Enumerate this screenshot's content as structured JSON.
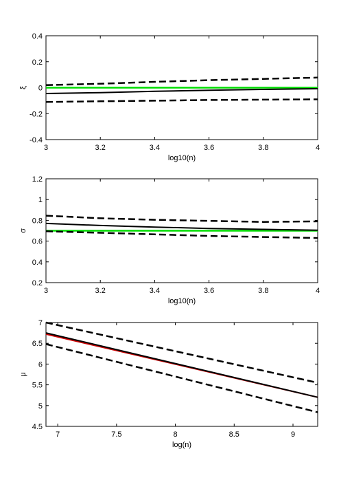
{
  "chart_data": [
    {
      "type": "line",
      "xlabel": "log10(n)",
      "ylabel": "ξ",
      "xlim": [
        3,
        4
      ],
      "ylim": [
        -0.4,
        0.4
      ],
      "xticks": [
        "3",
        "3.2",
        "3.4",
        "3.6",
        "3.8",
        "4"
      ],
      "yticks": [
        "-0.4",
        "-0.2",
        "0",
        "0.2",
        "0.4"
      ],
      "series": [
        {
          "style": "solid",
          "color": "#00dd00",
          "x": [
            3,
            4
          ],
          "y": [
            0.0,
            0.0
          ]
        },
        {
          "style": "solid",
          "color": "#000000",
          "x": [
            3,
            3.2,
            3.4,
            3.6,
            3.8,
            4
          ],
          "y": [
            -0.045,
            -0.038,
            -0.028,
            -0.02,
            -0.013,
            -0.008
          ]
        },
        {
          "style": "dashed",
          "color": "#000000",
          "x": [
            3,
            3.2,
            3.4,
            3.6,
            3.8,
            4
          ],
          "y": [
            0.02,
            0.03,
            0.045,
            0.058,
            0.068,
            0.078
          ]
        },
        {
          "style": "dashed",
          "color": "#000000",
          "x": [
            3,
            3.2,
            3.4,
            3.6,
            3.8,
            4
          ],
          "y": [
            -0.11,
            -0.105,
            -0.1,
            -0.095,
            -0.092,
            -0.09
          ]
        }
      ]
    },
    {
      "type": "line",
      "xlabel": "log10(n)",
      "ylabel": "σ",
      "xlim": [
        3,
        4
      ],
      "ylim": [
        0.2,
        1.2
      ],
      "xticks": [
        "3",
        "3.2",
        "3.4",
        "3.6",
        "3.8",
        "4"
      ],
      "yticks": [
        "0.2",
        "0.4",
        "0.6",
        "0.8",
        "1",
        "1.2"
      ],
      "series": [
        {
          "style": "solid",
          "color": "#00dd00",
          "x": [
            3,
            4
          ],
          "y": [
            0.7,
            0.7
          ]
        },
        {
          "style": "solid",
          "color": "#000000",
          "x": [
            3,
            3.2,
            3.4,
            3.6,
            3.8,
            4
          ],
          "y": [
            0.77,
            0.75,
            0.735,
            0.722,
            0.713,
            0.705
          ]
        },
        {
          "style": "dashed",
          "color": "#000000",
          "x": [
            3,
            3.2,
            3.4,
            3.6,
            3.8,
            4
          ],
          "y": [
            0.845,
            0.82,
            0.805,
            0.795,
            0.785,
            0.79
          ]
        },
        {
          "style": "dashed",
          "color": "#000000",
          "x": [
            3,
            3.2,
            3.4,
            3.6,
            3.8,
            4
          ],
          "y": [
            0.695,
            0.68,
            0.665,
            0.65,
            0.64,
            0.63
          ]
        }
      ]
    },
    {
      "type": "line",
      "xlabel": "log(n)",
      "ylabel": "μ",
      "xlim": [
        6.9,
        9.21
      ],
      "ylim": [
        4.5,
        7
      ],
      "xticks": [
        "7",
        "7.5",
        "8",
        "8.5",
        "9"
      ],
      "yticks": [
        "4.5",
        "5",
        "5.5",
        "6",
        "6.5",
        "7"
      ],
      "series": [
        {
          "style": "solid",
          "color": "#cc0000",
          "x": [
            6.9,
            9.21
          ],
          "y": [
            6.72,
            5.2
          ]
        },
        {
          "style": "solid",
          "color": "#000000",
          "x": [
            6.9,
            9.21
          ],
          "y": [
            6.75,
            5.2
          ]
        },
        {
          "style": "dashed",
          "color": "#000000",
          "x": [
            6.9,
            9.21
          ],
          "y": [
            7.0,
            5.55
          ]
        },
        {
          "style": "dashed",
          "color": "#000000",
          "x": [
            6.9,
            9.21
          ],
          "y": [
            6.48,
            4.84
          ]
        }
      ]
    }
  ]
}
